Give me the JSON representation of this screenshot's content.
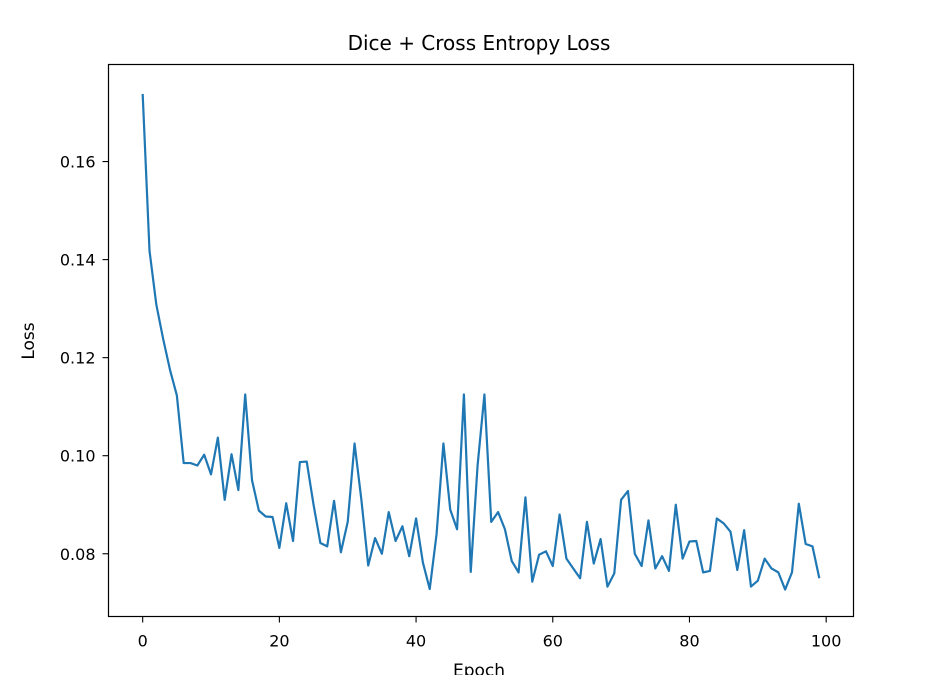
{
  "chart_data": {
    "type": "line",
    "title": "Dice + Cross Entropy Loss",
    "xlabel": "Epoch",
    "ylabel": "Loss",
    "xlim": [
      -5,
      104
    ],
    "ylim": [
      0.0672,
      0.1798
    ],
    "xticks": [
      0,
      20,
      40,
      60,
      80,
      100
    ],
    "yticks": [
      0.08,
      0.1,
      0.12,
      0.14,
      0.16
    ],
    "ytick_labels": [
      "0.08",
      "0.10",
      "0.12",
      "0.14",
      "0.16"
    ],
    "xtick_labels": [
      "0",
      "20",
      "40",
      "60",
      "80",
      "100"
    ],
    "grid": false,
    "legend": "none",
    "line_color": "#1f77b4",
    "x": [
      0,
      1,
      2,
      3,
      4,
      5,
      6,
      7,
      8,
      9,
      10,
      11,
      12,
      13,
      14,
      15,
      16,
      17,
      18,
      19,
      20,
      21,
      22,
      23,
      24,
      25,
      26,
      27,
      28,
      29,
      30,
      31,
      32,
      33,
      34,
      35,
      36,
      37,
      38,
      39,
      40,
      41,
      42,
      43,
      44,
      45,
      46,
      47,
      48,
      49,
      50,
      51,
      52,
      53,
      54,
      55,
      56,
      57,
      58,
      59,
      60,
      61,
      62,
      63,
      64,
      65,
      66,
      67,
      68,
      69,
      70,
      71,
      72,
      73,
      74,
      75,
      76,
      77,
      78,
      79,
      80,
      81,
      82,
      83,
      84,
      85,
      86,
      87,
      88,
      89,
      90,
      91,
      92,
      93,
      94,
      95,
      96,
      97,
      98,
      99
    ],
    "y": [
      0.1738,
      0.1418,
      0.1308,
      0.1238,
      0.1175,
      0.1123,
      0.0985,
      0.0985,
      0.098,
      0.1002,
      0.0962,
      0.1037,
      0.091,
      0.1003,
      0.093,
      0.1125,
      0.095,
      0.0888,
      0.0876,
      0.0875,
      0.0812,
      0.0903,
      0.0826,
      0.0987,
      0.0988,
      0.09,
      0.0822,
      0.0815,
      0.0908,
      0.0803,
      0.0865,
      0.1025,
      0.091,
      0.0776,
      0.0832,
      0.08,
      0.0885,
      0.0826,
      0.0856,
      0.0795,
      0.0872,
      0.0782,
      0.0728,
      0.084,
      0.1025,
      0.089,
      0.085,
      0.1125,
      0.0763,
      0.098,
      0.1125,
      0.0865,
      0.0885,
      0.085,
      0.0785,
      0.0762,
      0.0915,
      0.0743,
      0.0798,
      0.0805,
      0.0775,
      0.088,
      0.079,
      0.077,
      0.075,
      0.0865,
      0.078,
      0.083,
      0.0733,
      0.076,
      0.091,
      0.0928,
      0.08,
      0.0775,
      0.0868,
      0.077,
      0.0795,
      0.0765,
      0.09,
      0.079,
      0.0825,
      0.0826,
      0.0762,
      0.0765,
      0.0872,
      0.0862,
      0.0845,
      0.0767,
      0.0848,
      0.0733,
      0.0745,
      0.079,
      0.077,
      0.0762,
      0.0727,
      0.0762,
      0.0902,
      0.082,
      0.0815,
      0.075
    ]
  }
}
